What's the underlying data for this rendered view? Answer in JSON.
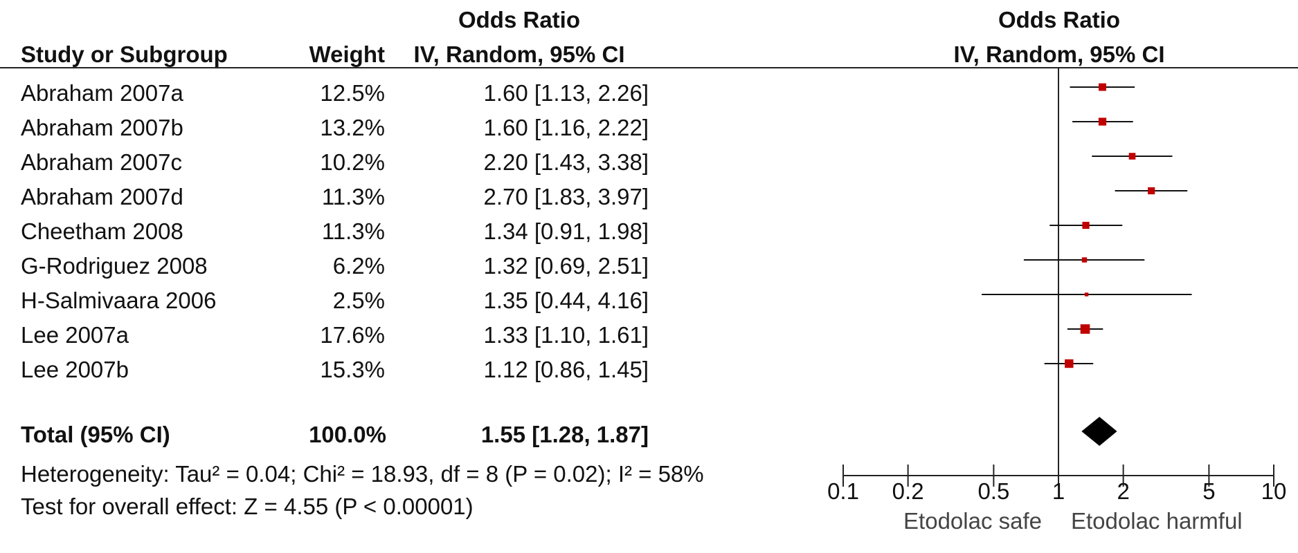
{
  "table": {
    "header": {
      "or_group": "Odds Ratio",
      "study": "Study or Subgroup",
      "weight": "Weight",
      "method": "IV, Random, 95% CI",
      "plot_group": "Odds Ratio",
      "plot_method": "IV, Random, 95% CI"
    },
    "rows": [
      {
        "study": "Abraham 2007a",
        "weight": "12.5%",
        "ci": "1.60 [1.13, 2.26]"
      },
      {
        "study": "Abraham 2007b",
        "weight": "13.2%",
        "ci": "1.60 [1.16, 2.22]"
      },
      {
        "study": "Abraham 2007c",
        "weight": "10.2%",
        "ci": "2.20 [1.43, 3.38]"
      },
      {
        "study": "Abraham 2007d",
        "weight": "11.3%",
        "ci": "2.70 [1.83, 3.97]"
      },
      {
        "study": "Cheetham 2008",
        "weight": "11.3%",
        "ci": "1.34 [0.91, 1.98]"
      },
      {
        "study": "G-Rodriguez 2008",
        "weight": "6.2%",
        "ci": "1.32 [0.69, 2.51]"
      },
      {
        "study": "H-Salmivaara 2006",
        "weight": "2.5%",
        "ci": "1.35 [0.44, 4.16]"
      },
      {
        "study": "Lee 2007a",
        "weight": "17.6%",
        "ci": "1.33 [1.10, 1.61]"
      },
      {
        "study": "Lee 2007b",
        "weight": "15.3%",
        "ci": "1.12 [0.86, 1.45]"
      }
    ],
    "total": {
      "label": "Total (95% CI)",
      "weight": "100.0%",
      "ci": "1.55 [1.28, 1.87]"
    },
    "heterogeneity": "Heterogeneity: Tau² = 0.04; Chi² = 18.93, df = 8 (P = 0.02); I² = 58%",
    "overall": "Test for overall effect: Z = 4.55 (P < 0.00001)"
  },
  "chart_data": {
    "type": "forest",
    "xscale": "log",
    "xlim": [
      0.1,
      10
    ],
    "ticks": [
      0.1,
      0.2,
      0.5,
      1,
      2,
      5,
      10
    ],
    "tick_labels": [
      "0.1",
      "0.2",
      "0.5",
      "1",
      "2",
      "5",
      "10"
    ],
    "reference_line": 1,
    "xlabel_left": "Etodolac safe",
    "xlabel_right": "Etodolac harmful",
    "marker_color": "#c00000",
    "studies": [
      {
        "name": "Abraham 2007a",
        "or": 1.6,
        "lo": 1.13,
        "hi": 2.26,
        "weight": 12.5
      },
      {
        "name": "Abraham 2007b",
        "or": 1.6,
        "lo": 1.16,
        "hi": 2.22,
        "weight": 13.2
      },
      {
        "name": "Abraham 2007c",
        "or": 2.2,
        "lo": 1.43,
        "hi": 3.38,
        "weight": 10.2
      },
      {
        "name": "Abraham 2007d",
        "or": 2.7,
        "lo": 1.83,
        "hi": 3.97,
        "weight": 11.3
      },
      {
        "name": "Cheetham 2008",
        "or": 1.34,
        "lo": 0.91,
        "hi": 1.98,
        "weight": 11.3
      },
      {
        "name": "G-Rodriguez 2008",
        "or": 1.32,
        "lo": 0.69,
        "hi": 2.51,
        "weight": 6.2
      },
      {
        "name": "H-Salmivaara 2006",
        "or": 1.35,
        "lo": 0.44,
        "hi": 4.16,
        "weight": 2.5
      },
      {
        "name": "Lee 2007a",
        "or": 1.33,
        "lo": 1.1,
        "hi": 1.61,
        "weight": 17.6
      },
      {
        "name": "Lee 2007b",
        "or": 1.12,
        "lo": 0.86,
        "hi": 1.45,
        "weight": 15.3
      }
    ],
    "pooled": {
      "or": 1.55,
      "lo": 1.28,
      "hi": 1.87
    }
  }
}
